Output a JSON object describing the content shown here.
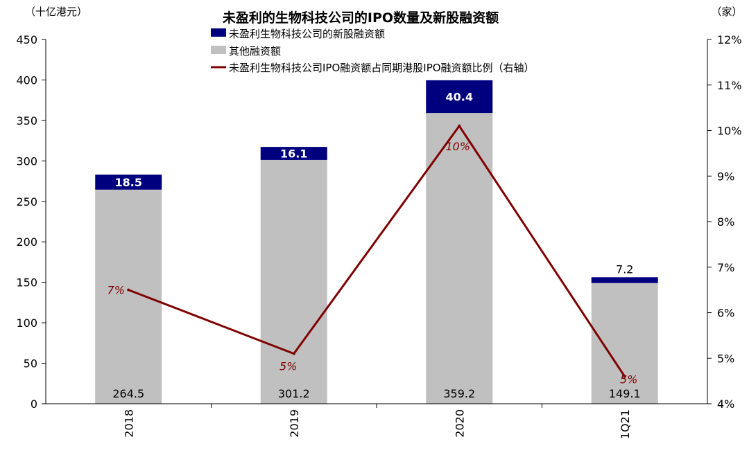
{
  "chart_data": {
    "type": "bar",
    "title": "未盈利的生物科技公司的IPO数量及新股融资额",
    "left_unit": "（十亿港元）",
    "right_unit": "（家）",
    "categories": [
      "2018",
      "2019",
      "2020",
      "1Q21"
    ],
    "series": [
      {
        "name": "未盈利生物科技公司的新股融资额",
        "kind": "stacked-bar-top",
        "color": "#00007f",
        "values": [
          18.5,
          16.1,
          40.4,
          7.2
        ],
        "labels": [
          "18.5",
          "16.1",
          "40.4",
          "7.2"
        ]
      },
      {
        "name": "其他融资额",
        "kind": "stacked-bar-base",
        "color": "#c0c0c0",
        "values": [
          264.5,
          301.2,
          359.2,
          149.1
        ],
        "labels": [
          "264.5",
          "301.2",
          "359.2",
          "149.1"
        ]
      },
      {
        "name": "未盈利生物科技公司IPO融资额占同期港股IPO融资额比例（右轴）",
        "kind": "line-right-axis",
        "color": "#7f0000",
        "values": [
          0.065,
          0.051,
          0.101,
          0.046
        ],
        "labels": [
          "7%",
          "5%",
          "10%",
          "5%"
        ]
      }
    ],
    "left_axis": {
      "ylim": [
        0,
        450
      ],
      "ticks": [
        0,
        50,
        100,
        150,
        200,
        250,
        300,
        350,
        400,
        450
      ],
      "tick_labels": [
        "0",
        "50",
        "100",
        "150",
        "200",
        "250",
        "300",
        "350",
        "400",
        "450"
      ]
    },
    "right_axis": {
      "ylim": [
        0.04,
        0.12
      ],
      "ticks": [
        0.04,
        0.05,
        0.06,
        0.07,
        0.08,
        0.09,
        0.1,
        0.11,
        0.12
      ],
      "tick_labels": [
        "4%",
        "5%",
        "6%",
        "7%",
        "8%",
        "9%",
        "10%",
        "11%",
        "12%"
      ]
    },
    "grid": false,
    "legend_position": "top-left"
  }
}
